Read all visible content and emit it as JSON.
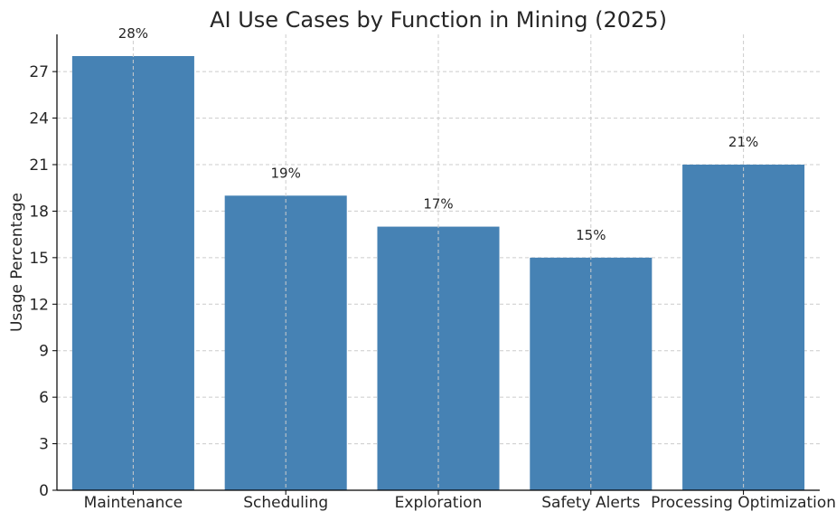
{
  "chart_data": {
    "type": "bar",
    "title": "AI Use Cases by Function in Mining (2025)",
    "xlabel": "",
    "ylabel": "Usage Percentage",
    "categories": [
      "Maintenance",
      "Scheduling",
      "Exploration",
      "Safety Alerts",
      "Processing Optimization"
    ],
    "values": [
      28,
      19,
      17,
      15,
      21
    ],
    "data_labels": [
      "28%",
      "19%",
      "17%",
      "15%",
      "21%"
    ],
    "ylim": [
      0,
      29.4
    ],
    "yticks": [
      0,
      3,
      6,
      9,
      12,
      15,
      18,
      21,
      24,
      27
    ],
    "grid": true,
    "bar_color": "#4682b4",
    "legend": "none"
  }
}
